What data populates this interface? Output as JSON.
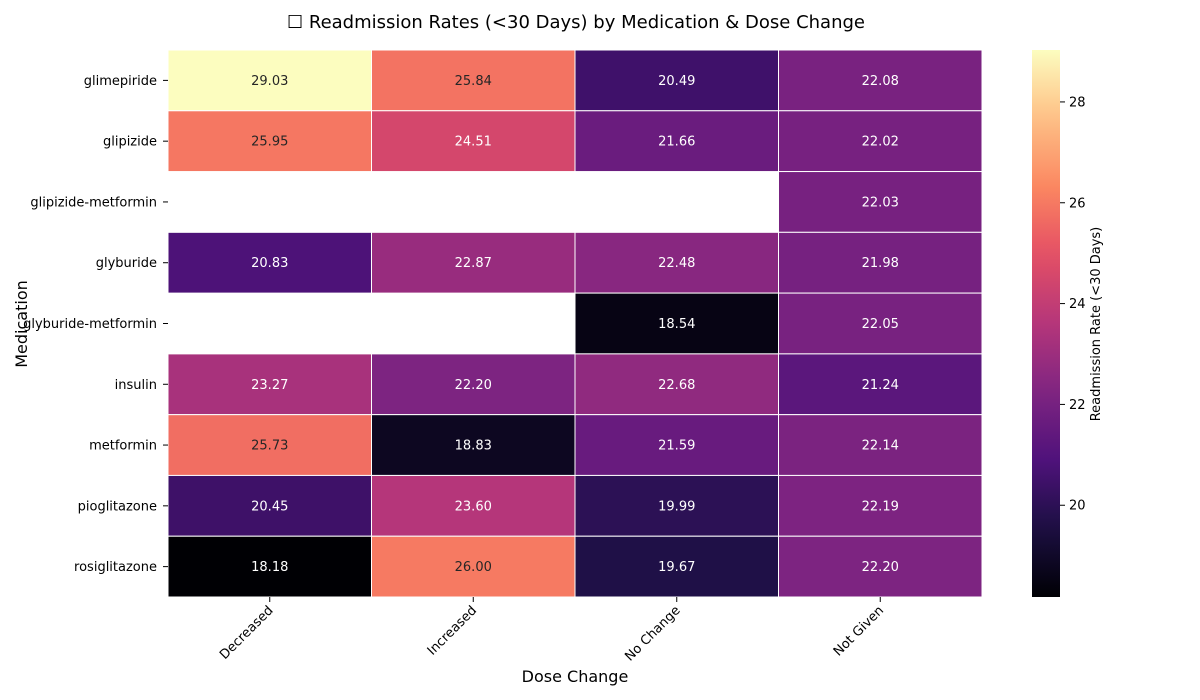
{
  "chart_data": {
    "type": "heatmap",
    "title": "☐ Readmission Rates (<30 Days) by Medication & Dose Change",
    "xlabel": "Dose Change",
    "ylabel": "Medication",
    "x_categories": [
      "Decreased",
      "Increased",
      "No Change",
      "Not Given"
    ],
    "y_categories": [
      "glimepiride",
      "glipizide",
      "glipizide-metformin",
      "glyburide",
      "glyburide-metformin",
      "insulin",
      "metformin",
      "pioglitazone",
      "rosiglitazone"
    ],
    "values": [
      [
        29.03,
        25.84,
        20.49,
        22.08
      ],
      [
        25.95,
        24.51,
        21.66,
        22.02
      ],
      [
        null,
        null,
        null,
        22.03
      ],
      [
        20.83,
        22.87,
        22.48,
        21.98
      ],
      [
        null,
        null,
        18.54,
        22.05
      ],
      [
        23.27,
        22.2,
        22.68,
        21.24
      ],
      [
        25.73,
        18.83,
        21.59,
        22.14
      ],
      [
        20.45,
        23.6,
        19.99,
        22.19
      ],
      [
        18.18,
        26.0,
        19.67,
        22.2
      ]
    ],
    "value_format": "0.00",
    "colormap": "magma",
    "color_range": [
      18.18,
      29.03
    ],
    "colorbar": {
      "label": "Readmission Rate (<30 Days)",
      "ticks": [
        20,
        22,
        24,
        26,
        28
      ]
    }
  }
}
